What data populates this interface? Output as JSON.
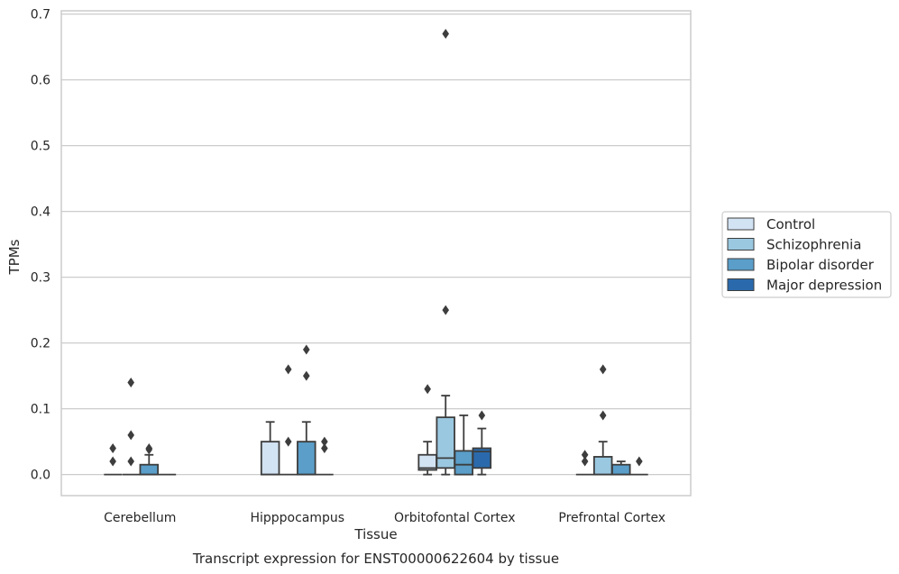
{
  "chart_data": {
    "type": "box",
    "xlabel": "Tissue",
    "ylabel": "TPMs",
    "caption": "Transcript expression for ENST00000622604 by tissue",
    "ylim": [
      -0.032,
      0.705
    ],
    "yticks": [
      0.0,
      0.1,
      0.2,
      0.3,
      0.4,
      0.5,
      0.6,
      0.7
    ],
    "ytick_labels": [
      "0.0",
      "0.1",
      "0.2",
      "0.3",
      "0.4",
      "0.5",
      "0.6",
      "0.7"
    ],
    "grid": "horizontal",
    "legend_position": "right",
    "categories": [
      "Cerebellum",
      "Hipppocampus",
      "Orbitofontal Cortex",
      "Prefrontal Cortex"
    ],
    "series": [
      {
        "name": "Control",
        "color": "#d2e3f3",
        "boxes": [
          {
            "q1": 0,
            "median": 0,
            "q3": 0,
            "whisker_low": 0,
            "whisker_high": 0,
            "outliers": [
              0.04,
              0.02
            ]
          },
          {
            "q1": 0,
            "median": 0,
            "q3": 0.05,
            "whisker_low": 0,
            "whisker_high": 0.08,
            "outliers": []
          },
          {
            "q1": 0.007,
            "median": 0.01,
            "q3": 0.03,
            "whisker_low": 0,
            "whisker_high": 0.05,
            "outliers": [
              0.13
            ]
          },
          {
            "q1": 0,
            "median": 0,
            "q3": 0,
            "whisker_low": 0,
            "whisker_high": 0,
            "outliers": [
              0.03,
              0.02
            ]
          }
        ]
      },
      {
        "name": "Schizophrenia",
        "color": "#9ac8e0",
        "boxes": [
          {
            "q1": 0,
            "median": 0,
            "q3": 0,
            "whisker_low": 0,
            "whisker_high": 0,
            "outliers": [
              0.14,
              0.06,
              0.02
            ]
          },
          {
            "q1": 0,
            "median": 0,
            "q3": 0,
            "whisker_low": 0,
            "whisker_high": 0,
            "outliers": [
              0.16,
              0.05
            ]
          },
          {
            "q1": 0.01,
            "median": 0.025,
            "q3": 0.087,
            "whisker_low": 0,
            "whisker_high": 0.12,
            "outliers": [
              0.67,
              0.25
            ]
          },
          {
            "q1": 0,
            "median": 0,
            "q3": 0.027,
            "whisker_low": 0,
            "whisker_high": 0.05,
            "outliers": [
              0.16,
              0.09
            ]
          }
        ]
      },
      {
        "name": "Bipolar disorder",
        "color": "#5a9ec9",
        "boxes": [
          {
            "q1": 0,
            "median": 0,
            "q3": 0.015,
            "whisker_low": 0,
            "whisker_high": 0.03,
            "outliers": [
              0.04,
              0.038
            ]
          },
          {
            "q1": 0,
            "median": 0,
            "q3": 0.05,
            "whisker_low": 0,
            "whisker_high": 0.08,
            "outliers": [
              0.19,
              0.15
            ]
          },
          {
            "q1": 0,
            "median": 0.015,
            "q3": 0.036,
            "whisker_low": 0,
            "whisker_high": 0.09,
            "outliers": []
          },
          {
            "q1": 0,
            "median": 0,
            "q3": 0.015,
            "whisker_low": 0,
            "whisker_high": 0.02,
            "outliers": []
          }
        ]
      },
      {
        "name": "Major depression",
        "color": "#2a6aac",
        "boxes": [
          {
            "q1": 0,
            "median": 0,
            "q3": 0,
            "whisker_low": 0,
            "whisker_high": 0,
            "outliers": []
          },
          {
            "q1": 0,
            "median": 0,
            "q3": 0,
            "whisker_low": 0,
            "whisker_high": 0,
            "outliers": [
              0.05,
              0.04
            ]
          },
          {
            "q1": 0.01,
            "median": 0.035,
            "q3": 0.04,
            "whisker_low": 0,
            "whisker_high": 0.07,
            "outliers": [
              0.09
            ]
          },
          {
            "q1": 0,
            "median": 0,
            "q3": 0,
            "whisker_low": 0,
            "whisker_high": 0,
            "outliers": [
              0.02
            ]
          }
        ]
      }
    ]
  }
}
